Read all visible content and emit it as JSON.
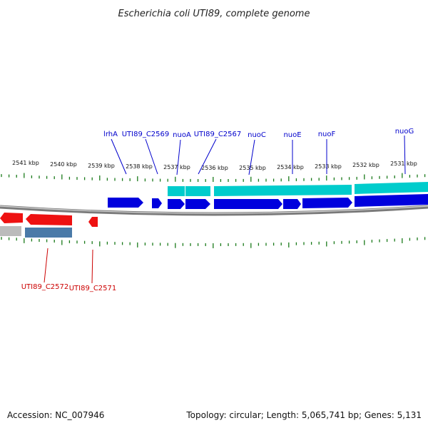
{
  "title": "Escherichia coli UTI89, complete genome",
  "footer": {
    "accession": "Accession: NC_007946",
    "topology": "Topology: circular; Length: 5,065,741 bp; Genes: 5,131"
  },
  "colors": {
    "forward_gene": "#0000dd",
    "forward_highlight": "#00cccc",
    "reverse_gene": "#ee1111",
    "reverse_highlight": "#4a7aa8",
    "reverse_grey": "#bbbbbb",
    "backbone": "#888888",
    "tick": "#1a7a1a",
    "fwd_label": "#0000cc",
    "rev_label": "#cc0000"
  },
  "scale": {
    "unit": "kbp",
    "labels": [
      "2541 kbp",
      "2540 kbp",
      "2539 kbp",
      "2538 kbp",
      "2537 kbp",
      "2536 kbp",
      "2535 kbp",
      "2534 kbp",
      "2533 kbp",
      "2532 kbp",
      "2531 kbp"
    ]
  },
  "genes_forward": [
    {
      "name": "lrhA"
    },
    {
      "name": "UTI89_C2569"
    },
    {
      "name": "nuoA"
    },
    {
      "name": "UTI89_C2567"
    },
    {
      "name": "nuoC"
    },
    {
      "name": "nuoE"
    },
    {
      "name": "nuoF"
    },
    {
      "name": "nuoG"
    }
  ],
  "genes_reverse": [
    {
      "name": "UTI89_C2572"
    },
    {
      "name": "UTI89_C2571"
    }
  ]
}
